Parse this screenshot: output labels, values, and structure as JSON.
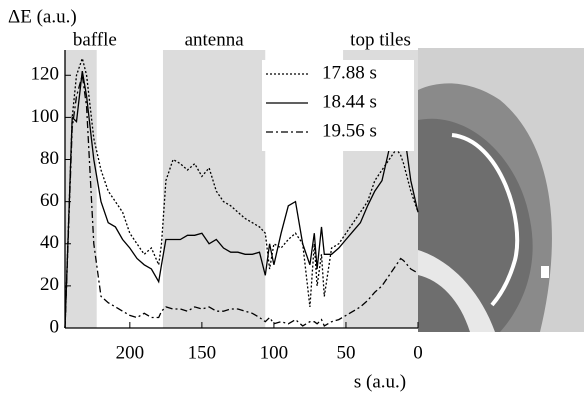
{
  "chart_data": {
    "type": "line",
    "y_label": "ΔE (a.u.)",
    "x_label": "s (a.u.)",
    "xlim": [
      245,
      0
    ],
    "ylim": [
      0,
      132
    ],
    "xticks": [
      200,
      150,
      100,
      50,
      0
    ],
    "yticks": [
      0,
      20,
      40,
      60,
      80,
      100,
      120
    ],
    "regions": [
      {
        "label": "baffle",
        "start": 245,
        "end": 223
      },
      {
        "label": "antenna",
        "start": 177,
        "end": 106
      },
      {
        "label": "top tiles",
        "start": 52,
        "end": 0
      }
    ],
    "region_color": "#dcdcdc",
    "legend": "upper right",
    "x": [
      245,
      240,
      237,
      233,
      230,
      225,
      220,
      215,
      210,
      205,
      200,
      195,
      190,
      185,
      180,
      178,
      175,
      170,
      165,
      160,
      155,
      150,
      145,
      140,
      135,
      130,
      125,
      120,
      115,
      110,
      106,
      103,
      100,
      95,
      90,
      85,
      80,
      75,
      72,
      70,
      67,
      65,
      60,
      55,
      50,
      45,
      40,
      35,
      30,
      25,
      20,
      15,
      12,
      10,
      5,
      0
    ],
    "series": [
      {
        "name": "17.88 s",
        "color": "#000000",
        "style": "dotted",
        "values": [
          0,
          100,
          120,
          128,
          120,
          90,
          75,
          65,
          60,
          55,
          45,
          40,
          35,
          38,
          30,
          40,
          70,
          80,
          78,
          75,
          78,
          72,
          76,
          65,
          60,
          58,
          55,
          52,
          50,
          48,
          45,
          28,
          40,
          38,
          42,
          45,
          40,
          10,
          40,
          20,
          35,
          15,
          38,
          40,
          45,
          50,
          55,
          60,
          70,
          75,
          80,
          85,
          82,
          78,
          65,
          55
        ]
      },
      {
        "name": "18.44 s",
        "color": "#000000",
        "style": "solid",
        "values": [
          0,
          100,
          98,
          122,
          110,
          80,
          60,
          50,
          48,
          42,
          38,
          33,
          30,
          28,
          22,
          30,
          42,
          42,
          42,
          44,
          44,
          45,
          40,
          42,
          38,
          36,
          36,
          35,
          35,
          36,
          25,
          40,
          30,
          45,
          58,
          60,
          40,
          30,
          45,
          28,
          48,
          35,
          35,
          38,
          42,
          46,
          50,
          58,
          65,
          70,
          85,
          95,
          100,
          95,
          70,
          55
        ]
      },
      {
        "name": "19.56 s",
        "color": "#000000",
        "style": "dashdot",
        "values": [
          0,
          95,
          110,
          120,
          105,
          40,
          15,
          12,
          10,
          8,
          6,
          5,
          7,
          5,
          5,
          8,
          10,
          9,
          9,
          8,
          10,
          9,
          10,
          8,
          8,
          9,
          9,
          8,
          7,
          5,
          3,
          5,
          2,
          3,
          2,
          4,
          1,
          3,
          3,
          2,
          4,
          1,
          3,
          4,
          6,
          8,
          10,
          13,
          17,
          20,
          25,
          30,
          33,
          32,
          28,
          26
        ]
      }
    ]
  }
}
